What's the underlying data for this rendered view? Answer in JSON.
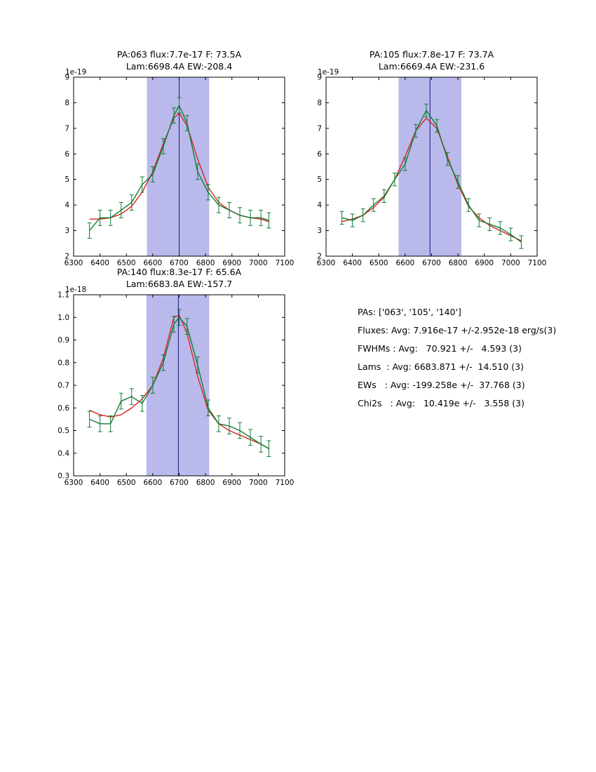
{
  "figure": {
    "background": "#ffffff"
  },
  "colors": {
    "band": "#b9b9ec",
    "vline": "#151580",
    "axis": "#000000"
  },
  "chart_data": [
    {
      "type": "line",
      "title_line1": "PA:063 flux:7.7e-17 F: 73.5A",
      "title_line2": "Lam:6698.4A EW:-208.4",
      "offset_label": "1e-19",
      "xlabel": "",
      "ylabel": "",
      "xlim": [
        6300,
        7100
      ],
      "ylim": [
        2,
        9
      ],
      "xticks": [
        6300,
        6400,
        6500,
        6600,
        6700,
        6800,
        6900,
        7000,
        7100
      ],
      "yticks": [
        2,
        3,
        4,
        5,
        6,
        7,
        8,
        9
      ],
      "ytick_decimals": 0,
      "band": [
        6578,
        6814
      ],
      "vline": 6700,
      "series": [
        {
          "name": "gaussian-fit",
          "color": "#dd2222",
          "style": "line",
          "x": [
            6360,
            6400,
            6440,
            6480,
            6520,
            6560,
            6600,
            6640,
            6680,
            6700,
            6730,
            6770,
            6810,
            6850,
            6890,
            6930,
            6970,
            7010,
            7040
          ],
          "y": [
            3.45,
            3.45,
            3.5,
            3.65,
            3.95,
            4.5,
            5.3,
            6.4,
            7.4,
            7.6,
            7.1,
            5.8,
            4.7,
            4.1,
            3.8,
            3.6,
            3.5,
            3.45,
            3.35
          ]
        },
        {
          "name": "spectrum-data",
          "color": "#0f7d32",
          "style": "errorbar",
          "yerr": 0.3,
          "x": [
            6360,
            6400,
            6440,
            6480,
            6520,
            6560,
            6600,
            6640,
            6680,
            6700,
            6730,
            6770,
            6810,
            6850,
            6890,
            6930,
            6970,
            7010,
            7040
          ],
          "y": [
            3.0,
            3.5,
            3.5,
            3.8,
            4.1,
            4.8,
            5.2,
            6.3,
            7.5,
            7.9,
            7.2,
            5.3,
            4.5,
            4.0,
            3.8,
            3.6,
            3.5,
            3.5,
            3.4
          ]
        }
      ]
    },
    {
      "type": "line",
      "title_line1": "PA:105 flux:7.8e-17 F: 73.7A",
      "title_line2": "Lam:6669.4A EW:-231.6",
      "offset_label": "1e-19",
      "xlabel": "",
      "ylabel": "",
      "xlim": [
        6300,
        7100
      ],
      "ylim": [
        2,
        9
      ],
      "xticks": [
        6300,
        6400,
        6500,
        6600,
        6700,
        6800,
        6900,
        7000,
        7100
      ],
      "yticks": [
        2,
        3,
        4,
        5,
        6,
        7,
        8,
        9
      ],
      "ytick_decimals": 0,
      "band": [
        6575,
        6813
      ],
      "vline": 6694,
      "series": [
        {
          "name": "gaussian-fit",
          "color": "#dd2222",
          "style": "line",
          "x": [
            6360,
            6400,
            6440,
            6480,
            6520,
            6560,
            6600,
            6640,
            6680,
            6720,
            6760,
            6800,
            6840,
            6880,
            6920,
            6960,
            7000,
            7040
          ],
          "y": [
            3.35,
            3.45,
            3.6,
            3.9,
            4.3,
            5.0,
            5.9,
            6.9,
            7.4,
            7.0,
            5.9,
            4.8,
            3.95,
            3.5,
            3.2,
            3.0,
            2.8,
            2.6
          ]
        },
        {
          "name": "spectrum-data",
          "color": "#0f7d32",
          "style": "errorbar",
          "yerr": 0.25,
          "x": [
            6360,
            6400,
            6440,
            6480,
            6520,
            6560,
            6600,
            6640,
            6680,
            6720,
            6760,
            6800,
            6840,
            6880,
            6920,
            6960,
            7000,
            7040
          ],
          "y": [
            3.5,
            3.4,
            3.6,
            4.0,
            4.35,
            5.0,
            5.6,
            6.9,
            7.7,
            7.1,
            5.8,
            4.9,
            4.0,
            3.4,
            3.25,
            3.1,
            2.85,
            2.55
          ]
        }
      ]
    },
    {
      "type": "line",
      "title_line1": "PA:140 flux:8.3e-17 F: 65.6A",
      "title_line2": "Lam:6683.8A EW:-157.7",
      "offset_label": "1e-18",
      "xlabel": "",
      "ylabel": "",
      "xlim": [
        6300,
        7100
      ],
      "ylim": [
        0.3,
        1.1
      ],
      "xticks": [
        6300,
        6400,
        6500,
        6600,
        6700,
        6800,
        6900,
        7000,
        7100
      ],
      "yticks": [
        0.3,
        0.4,
        0.5,
        0.6,
        0.7,
        0.8,
        0.9,
        1.0,
        1.1
      ],
      "ytick_decimals": 1,
      "band": [
        6576,
        6814
      ],
      "vline": 6697,
      "series": [
        {
          "name": "gaussian-fit",
          "color": "#dd2222",
          "style": "line",
          "x": [
            6360,
            6400,
            6440,
            6480,
            6520,
            6560,
            6600,
            6640,
            6680,
            6700,
            6730,
            6770,
            6810,
            6850,
            6890,
            6930,
            6970,
            7010,
            7040
          ],
          "y": [
            0.59,
            0.57,
            0.56,
            0.57,
            0.6,
            0.64,
            0.7,
            0.82,
            1.0,
            1.01,
            0.93,
            0.74,
            0.59,
            0.53,
            0.5,
            0.48,
            0.46,
            0.44,
            0.42
          ]
        },
        {
          "name": "spectrum-data",
          "color": "#0f7d32",
          "style": "errorbar",
          "yerr": 0.035,
          "x": [
            6360,
            6400,
            6440,
            6480,
            6520,
            6560,
            6600,
            6640,
            6680,
            6700,
            6730,
            6770,
            6810,
            6850,
            6890,
            6930,
            6970,
            7010,
            7040
          ],
          "y": [
            0.55,
            0.53,
            0.53,
            0.63,
            0.65,
            0.62,
            0.7,
            0.8,
            0.97,
            1.0,
            0.96,
            0.79,
            0.6,
            0.53,
            0.52,
            0.5,
            0.47,
            0.44,
            0.42
          ]
        }
      ]
    }
  ],
  "stats": {
    "lines": [
      "PAs: ['063', '105', '140']",
      "Fluxes: Avg: 7.916e-17 +/-2.952e-18 erg/s(3)",
      "FWHMs : Avg:   70.921 +/-   4.593 (3)",
      "Lams  : Avg: 6683.871 +/-  14.510 (3)",
      "EWs   : Avg: -199.258e +/-  37.768 (3)",
      "Chi2s   : Avg:   10.419e +/-   3.558 (3)"
    ]
  }
}
